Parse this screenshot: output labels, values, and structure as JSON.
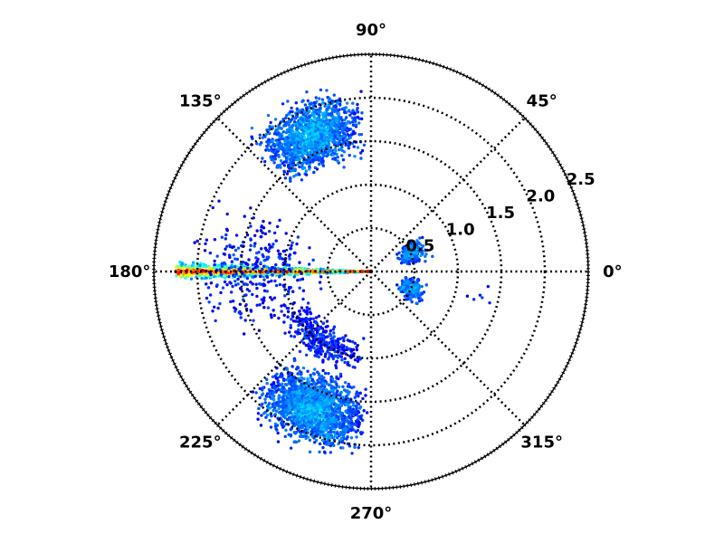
{
  "chart_data": {
    "type": "scatter",
    "subtype": "polar",
    "title": "",
    "angle_unit": "degrees",
    "angle_tick_labels": [
      "0°",
      "45°",
      "90°",
      "135°",
      "180°",
      "225°",
      "270°",
      "315°"
    ],
    "angle_ticks": [
      0,
      45,
      90,
      135,
      180,
      225,
      270,
      315
    ],
    "radial_ticks": [
      0.5,
      1.0,
      1.5,
      2.0,
      2.5
    ],
    "radial_tick_labels": [
      "0.5",
      "1.0",
      "1.5",
      "2.0",
      "2.5"
    ],
    "rlim": [
      0,
      2.5
    ],
    "grid": true,
    "grid_style": "dotted",
    "colormap": "jet",
    "color_encoding": "point density (blue = low, red = high)",
    "clusters": [
      {
        "description": "dense horizontal band along 180°",
        "theta_range": [
          177,
          183
        ],
        "r_range": [
          0.0,
          2.25
        ],
        "density": "very high",
        "points": 900
      },
      {
        "description": "upper-left arc",
        "theta_range": [
          92,
          135
        ],
        "r_range": [
          1.2,
          2.25
        ],
        "density": "medium",
        "points": 1300
      },
      {
        "description": "lower-left arc",
        "theta_range": [
          225,
          269
        ],
        "r_range": [
          1.2,
          2.25
        ],
        "density": "medium",
        "points": 1700
      },
      {
        "description": "lower-left inner spread",
        "theta_range": [
          200,
          268
        ],
        "r_range": [
          0.7,
          1.3
        ],
        "density": "low",
        "points": 350
      },
      {
        "description": "small arc near 0° (upper)",
        "theta_range": [
          10,
          40
        ],
        "r_range": [
          0.3,
          0.75
        ],
        "density": "medium",
        "points": 220
      },
      {
        "description": "small arc near 0° (lower)",
        "theta_range": [
          320,
          352
        ],
        "r_range": [
          0.3,
          0.7
        ],
        "density": "medium",
        "points": 220
      },
      {
        "description": "sparse scatter around 180° band",
        "theta_range": [
          150,
          210
        ],
        "r_range": [
          0.4,
          2.3
        ],
        "density": "low",
        "points": 300
      },
      {
        "description": "sparse right-side outliers",
        "theta_range": [
          338,
          358
        ],
        "r_range": [
          1.0,
          1.8
        ],
        "density": "very low",
        "points": 6
      }
    ],
    "note": "Points cover only the left half-plane (90°–270°) plus a small region near 0°."
  }
}
